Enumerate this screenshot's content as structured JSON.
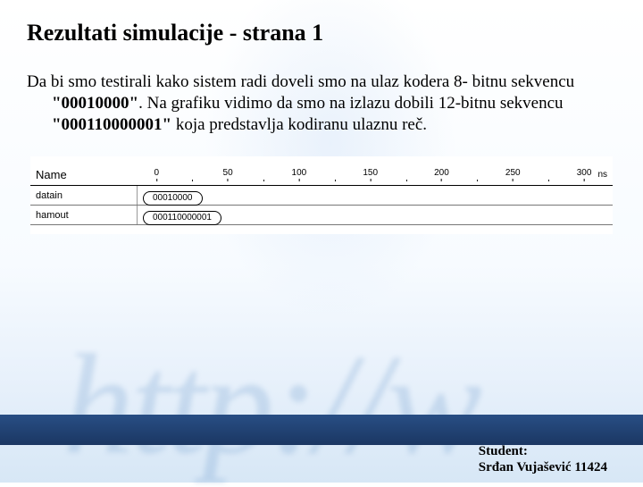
{
  "title": "Rezultati simulacije - strana 1",
  "paragraph_parts": {
    "p1": "Da bi smo testirali kako sistem radi doveli smo na ulaz kodera 8- bitnu sekvencu ",
    "b1": "\"00010000\"",
    "p2": ". Na grafiku vidimo da smo na izlazu dobili 12-bitnu sekvencu ",
    "b2": "\"000110000001\"",
    "p3": " koja predstavlja kodiranu ulaznu reč."
  },
  "sim": {
    "name_header": "Name",
    "unit": "ns",
    "ticks": [
      {
        "label": "0",
        "pos_pct": 4
      },
      {
        "label": "50",
        "pos_pct": 19
      },
      {
        "label": "100",
        "pos_pct": 34
      },
      {
        "label": "150",
        "pos_pct": 49
      },
      {
        "label": "200",
        "pos_pct": 64
      },
      {
        "label": "250",
        "pos_pct": 79
      },
      {
        "label": "300",
        "pos_pct": 94
      }
    ],
    "minor_ticks_pct": [
      11.5,
      26.5,
      41.5,
      56.5,
      71.5,
      86.5
    ],
    "signals": [
      {
        "name": "datain",
        "value": "00010000"
      },
      {
        "name": "hamout",
        "value": "000110000001"
      }
    ]
  },
  "watermark": "http://w",
  "footer_bar_color_top": "#284e84",
  "footer_bar_color_bottom": "#1b3763",
  "student": {
    "label": "Student:",
    "name": "Srđan Vujašević 11424"
  }
}
